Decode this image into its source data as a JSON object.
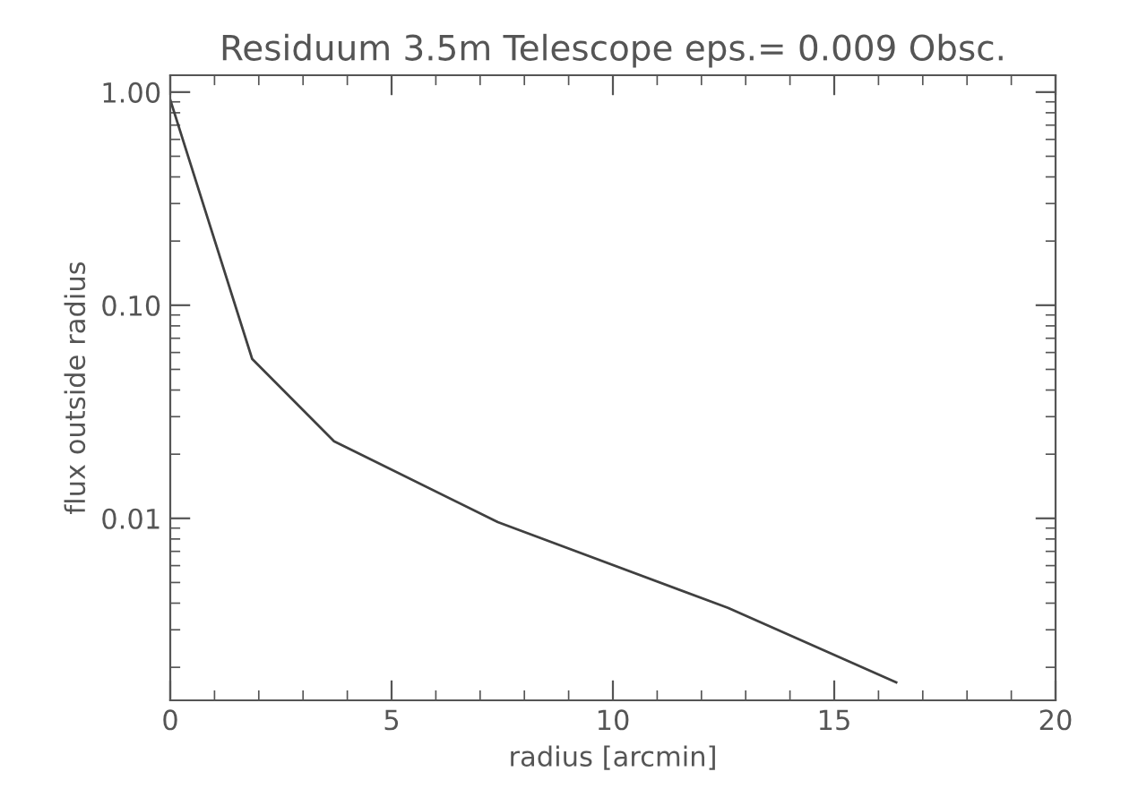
{
  "chart_data": {
    "type": "line",
    "title": "Residuum 3.5m Telescope eps.= 0.009 Obsc.",
    "xlabel": "radius [arcmin]",
    "ylabel": "flux outside radius",
    "x": [
      0,
      1.85,
      3.7,
      7.4,
      12.6,
      16.4
    ],
    "values": [
      0.92,
      0.056,
      0.023,
      0.0096,
      0.0038,
      0.0017
    ],
    "color": "#404040",
    "log": "y",
    "grid": false,
    "line_style": "solid",
    "marker": "none",
    "xlim": [
      0,
      20
    ],
    "xticks": [
      0,
      5,
      10,
      15,
      20
    ],
    "ylim": [
      0.0014,
      1.2
    ],
    "yticks": [
      {
        "value": 1,
        "label": "1.00"
      },
      {
        "value": 0.1,
        "label": "0.10"
      },
      {
        "value": 0.01,
        "label": "0.01"
      }
    ]
  }
}
